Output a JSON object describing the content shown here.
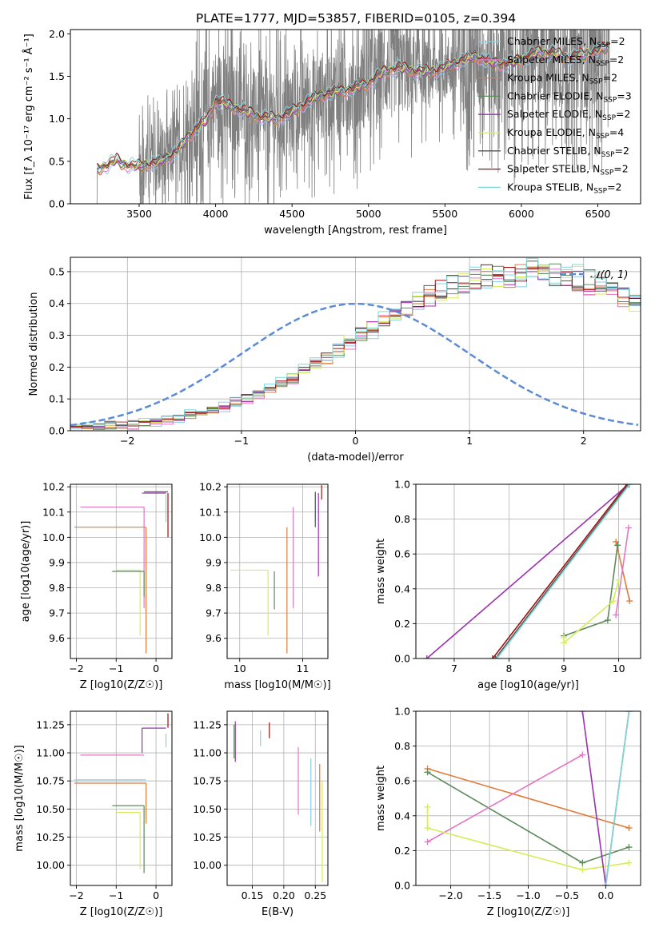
{
  "figure": {
    "title": "PLATE=1777, MJD=53857, FIBERID=0105, z=0.394"
  },
  "colors": {
    "Chabrier MILES": "#87CEEB",
    "Salpeter MILES": "#e377c2",
    "Kroupa MILES": "#e07b39",
    "Chabrier ELODIE": "#5b8a5b",
    "Salpeter ELODIE": "#9b30b0",
    "Kroupa ELODIE": "#d4ee5a",
    "Chabrier STELIB": "#555555",
    "Salpeter STELIB": "#a01010",
    "Kroupa STELIB": "#7fd8d8",
    "spectrum": "#808080",
    "normal": "#5b8bd6",
    "grid": "#b0b0b0"
  },
  "chart_data": [
    {
      "id": "spectrum",
      "type": "line",
      "title": "PLATE=1777, MJD=53857, FIBERID=0105, z=0.394",
      "xlabel": "wavelength [Angstrom, rest frame]",
      "ylabel": "Flux [f_λ 10⁻¹⁷ erg cm⁻² s⁻¹ Å⁻¹]",
      "xlim": [
        3050,
        6780
      ],
      "ylim": [
        0,
        2.05
      ],
      "xticks": [
        3500,
        4000,
        4500,
        5000,
        5500,
        6000,
        6500
      ],
      "yticks": [
        0.0,
        0.5,
        1.0,
        1.5,
        2.0
      ],
      "grid": false,
      "legend_position": "upper-right",
      "legend": [
        {
          "name": "Chabrier MILES",
          "label": "Chabrier MILES, N",
          "sub": "SSP",
          "tail": "=2"
        },
        {
          "name": "Salpeter MILES",
          "label": "Salpeter MILES, N",
          "sub": "SSP",
          "tail": "=2"
        },
        {
          "name": "Kroupa MILES",
          "label": "Kroupa MILES, N",
          "sub": "SSP",
          "tail": "=2"
        },
        {
          "name": "Chabrier ELODIE",
          "label": "Chabrier ELODIE, N",
          "sub": "SSP",
          "tail": "=3"
        },
        {
          "name": "Salpeter ELODIE",
          "label": "Salpeter ELODIE, N",
          "sub": "SSP",
          "tail": "=2"
        },
        {
          "name": "Kroupa ELODIE",
          "label": "Kroupa ELODIE, N",
          "sub": "SSP",
          "tail": "=4"
        },
        {
          "name": "Chabrier STELIB",
          "label": "Chabrier STELIB, N",
          "sub": "SSP",
          "tail": "=2"
        },
        {
          "name": "Salpeter STELIB",
          "label": "Salpeter STELIB, N",
          "sub": "SSP",
          "tail": "=2"
        },
        {
          "name": "Kroupa STELIB",
          "label": "Kroupa STELIB, N",
          "sub": "SSP",
          "tail": "=2"
        }
      ],
      "model_continuum": {
        "x": [
          3220,
          3300,
          3350,
          3400,
          3500,
          3650,
          3750,
          3850,
          3950,
          4000,
          4100,
          4200,
          4300,
          4400,
          4500,
          4600,
          4700,
          4800,
          4900,
          5000,
          5100,
          5200,
          5300,
          5400,
          5500,
          5600,
          5700,
          5800,
          5900,
          6000,
          6100,
          6200,
          6300,
          6400,
          6500,
          6580
        ],
        "y": [
          0.4,
          0.46,
          0.52,
          0.46,
          0.44,
          0.5,
          0.62,
          0.85,
          1.0,
          1.22,
          1.15,
          1.08,
          1.02,
          1.0,
          1.08,
          1.2,
          1.28,
          1.32,
          1.35,
          1.42,
          1.55,
          1.6,
          1.56,
          1.55,
          1.6,
          1.68,
          1.74,
          1.66,
          1.64,
          1.7,
          1.78,
          1.78,
          1.72,
          1.75,
          1.8,
          1.85
        ]
      }
    },
    {
      "id": "residuals",
      "type": "histogram",
      "xlabel": "(data-model)/error",
      "ylabel": "Normed distribution",
      "xlim": [
        -2.5,
        2.5
      ],
      "ylim": [
        0,
        0.545
      ],
      "xticks": [
        -2,
        -1,
        0,
        1,
        2
      ],
      "yticks": [
        0.0,
        0.1,
        0.2,
        0.3,
        0.4,
        0.5
      ],
      "grid": true,
      "legend_position": "upper-right",
      "normal_label": "N(0,1)",
      "normal": {
        "mu": 0,
        "sigma": 1
      },
      "bin_width": 0.1,
      "bin_start": -2.5,
      "envelope": [
        0.01,
        0.01,
        0.015,
        0.015,
        0.02,
        0.02,
        0.025,
        0.03,
        0.035,
        0.04,
        0.05,
        0.055,
        0.065,
        0.075,
        0.09,
        0.1,
        0.115,
        0.13,
        0.15,
        0.165,
        0.19,
        0.21,
        0.23,
        0.255,
        0.28,
        0.3,
        0.32,
        0.345,
        0.365,
        0.385,
        0.4,
        0.42,
        0.44,
        0.45,
        0.46,
        0.47,
        0.48,
        0.485,
        0.49,
        0.495,
        0.5,
        0.495,
        0.49,
        0.485,
        0.48,
        0.47,
        0.46,
        0.44,
        0.42,
        0.4,
        0.39,
        0.37,
        0.355,
        0.34,
        0.32,
        0.3,
        0.28,
        0.26,
        0.245,
        0.225,
        0.21,
        0.19,
        0.175,
        0.155,
        0.14,
        0.125,
        0.11,
        0.1,
        0.09,
        0.08,
        0.07,
        0.065,
        0.055,
        0.05,
        0.045,
        0.04,
        0.035,
        0.03,
        0.03,
        0.025
      ],
      "series_note": "nine model histograms, one per SSP library"
    },
    {
      "id": "age-vs-Z",
      "type": "errorbar",
      "xlabel": "Z [log10(Z/Z☉)]",
      "ylabel": "age [log10(age/yr)]",
      "xlim": [
        -2.15,
        0.4
      ],
      "ylim": [
        9.52,
        10.21
      ],
      "xticks": [
        -2,
        -1,
        0
      ],
      "yticks": [
        9.6,
        9.7,
        9.8,
        9.9,
        10.0,
        10.1,
        10.2
      ],
      "grid": true,
      "points": [
        {
          "model": "Salpeter MILES",
          "x": -0.3,
          "y": 10.12,
          "xerr": [
            1.6,
            0.0
          ],
          "yerr": [
            0.4,
            0.0
          ]
        },
        {
          "model": "Kroupa MILES",
          "x": -0.25,
          "y": 10.04,
          "xerr": [
            1.8,
            0.0
          ],
          "yerr": [
            0.5,
            0.0
          ]
        },
        {
          "model": "Kroupa ELODIE",
          "x": -0.4,
          "y": 9.87,
          "xerr": [
            0.6,
            0.0
          ],
          "yerr": [
            0.26,
            0.0
          ]
        },
        {
          "model": "Chabrier ELODIE",
          "x": -0.3,
          "y": 9.865,
          "xerr": [
            0.8,
            0.0
          ],
          "yerr": [
            0.1,
            0.0
          ]
        },
        {
          "model": "Salpeter ELODIE",
          "x": -0.35,
          "y": 10.175,
          "xerr": [
            0.0,
            0.6
          ],
          "yerr": [
            0.0,
            0.0
          ]
        },
        {
          "model": "Salpeter STELIB",
          "x": 0.3,
          "y": 10.0,
          "xerr": [
            0.0,
            0.0
          ],
          "yerr": [
            0.0,
            0.175
          ]
        },
        {
          "model": "Kroupa STELIB",
          "x": 0.25,
          "y": 10.06,
          "xerr": [
            0.0,
            0.0
          ],
          "yerr": [
            0.0,
            0.11
          ]
        },
        {
          "model": "Chabrier STELIB",
          "x": -0.3,
          "y": 10.18,
          "xerr": [
            0.0,
            0.6
          ],
          "yerr": [
            0.0,
            0.0
          ]
        }
      ]
    },
    {
      "id": "age-vs-mass",
      "type": "errorbar",
      "xlabel": "mass [log10(M/M☉)]",
      "ylabel": "",
      "xlim": [
        9.8,
        11.4
      ],
      "ylim": [
        9.52,
        10.21
      ],
      "xticks": [
        10,
        11
      ],
      "yticks": [
        9.6,
        9.7,
        9.8,
        9.9,
        10.0,
        10.1,
        10.2
      ],
      "grid": true,
      "points": [
        {
          "model": "Salpeter MILES",
          "x": 10.85,
          "y": 10.12,
          "xerr": [
            0.0,
            0.0
          ],
          "yerr": [
            0.4,
            0.0
          ]
        },
        {
          "model": "Kroupa MILES",
          "x": 10.75,
          "y": 10.04,
          "xerr": [
            0.0,
            0.0
          ],
          "yerr": [
            0.5,
            0.0
          ]
        },
        {
          "model": "Kroupa ELODIE",
          "x": 10.45,
          "y": 9.87,
          "xerr": [
            0.6,
            0.0
          ],
          "yerr": [
            0.26,
            0.0
          ]
        },
        {
          "model": "Chabrier ELODIE",
          "x": 10.55,
          "y": 9.865,
          "xerr": [
            0.0,
            0.0
          ],
          "yerr": [
            0.15,
            0.0
          ]
        },
        {
          "model": "Salpeter ELODIE",
          "x": 11.25,
          "y": 10.175,
          "xerr": [
            0.0,
            0.0
          ],
          "yerr": [
            0.33,
            0.0
          ]
        },
        {
          "model": "Salpeter STELIB",
          "x": 11.3,
          "y": 10.175,
          "xerr": [
            0.0,
            0.0
          ],
          "yerr": [
            0.0,
            0.0
          ]
        },
        {
          "model": "Kroupa STELIB",
          "x": 11.2,
          "y": 10.06,
          "xerr": [
            0.0,
            0.0
          ],
          "yerr": [
            0.0,
            0.11
          ]
        },
        {
          "model": "Chabrier STELIB",
          "x": 11.2,
          "y": 10.18,
          "xerr": [
            0.0,
            0.0
          ],
          "yerr": [
            0.14,
            0.0
          ]
        }
      ]
    },
    {
      "id": "weight-vs-age",
      "type": "line",
      "xlabel": "age [log10(age/yr)]",
      "ylabel": "mass weight",
      "xlim": [
        6.3,
        10.4
      ],
      "ylim": [
        0,
        1.0
      ],
      "xticks": [
        7,
        8,
        9,
        10
      ],
      "yticks": [
        0.0,
        0.2,
        0.4,
        0.6,
        0.8,
        1.0
      ],
      "grid": true,
      "series": [
        {
          "name": "Salpeter ELODIE",
          "x": [
            6.5,
            10.18
          ],
          "y": [
            0.0,
            1.0
          ]
        },
        {
          "name": "Salpeter STELIB",
          "x": [
            7.7,
            10.15
          ],
          "y": [
            0.0,
            1.0
          ]
        },
        {
          "name": "Chabrier STELIB",
          "x": [
            7.75,
            10.18
          ],
          "y": [
            0.0,
            1.0
          ]
        },
        {
          "name": "Kroupa STELIB",
          "x": [
            7.78,
            10.2
          ],
          "y": [
            0.0,
            1.0
          ]
        },
        {
          "name": "Kroupa MILES",
          "x": [
            9.95,
            10.2
          ],
          "y": [
            0.67,
            0.33
          ]
        },
        {
          "name": "Salpeter MILES",
          "x": [
            9.95,
            10.18
          ],
          "y": [
            0.25,
            0.75
          ]
        },
        {
          "name": "Chabrier ELODIE",
          "x": [
            9.0,
            9.8,
            9.98
          ],
          "y": [
            0.13,
            0.22,
            0.65
          ]
        },
        {
          "name": "Kroupa ELODIE",
          "x": [
            9.0,
            9.0,
            9.9,
            10.0
          ],
          "y": [
            0.12,
            0.09,
            0.33,
            0.45
          ]
        }
      ]
    },
    {
      "id": "mass-vs-Z",
      "type": "errorbar",
      "xlabel": "Z [log10(Z/Z☉)]",
      "ylabel": "mass [log10(M/M☉)]",
      "xlim": [
        -2.15,
        0.4
      ],
      "ylim": [
        9.82,
        11.37
      ],
      "xticks": [
        -2,
        -1,
        0
      ],
      "yticks": [
        10.0,
        10.25,
        10.5,
        10.75,
        11.0,
        11.25
      ],
      "grid": true,
      "points": [
        {
          "model": "Salpeter MILES",
          "x": -0.3,
          "y": 10.98,
          "xerr": [
            1.6,
            0.0
          ],
          "yerr": [
            0.0,
            0.0
          ]
        },
        {
          "model": "Kroupa MILES",
          "x": -0.25,
          "y": 10.73,
          "xerr": [
            1.8,
            0.0
          ],
          "yerr": [
            0.36,
            0.0
          ]
        },
        {
          "model": "Chabrier MILES",
          "x": -0.25,
          "y": 10.76,
          "xerr": [
            1.8,
            0.0
          ],
          "yerr": [
            0.0,
            0.0
          ]
        },
        {
          "model": "Kroupa ELODIE",
          "x": -0.4,
          "y": 10.47,
          "xerr": [
            0.6,
            0.0
          ],
          "yerr": [
            0.5,
            0.0
          ]
        },
        {
          "model": "Chabrier ELODIE",
          "x": -0.3,
          "y": 10.53,
          "xerr": [
            0.8,
            0.0
          ],
          "yerr": [
            0.6,
            0.0
          ]
        },
        {
          "model": "Salpeter ELODIE",
          "x": -0.35,
          "y": 11.22,
          "xerr": [
            0.0,
            0.6
          ],
          "yerr": [
            0.22,
            0.0
          ]
        },
        {
          "model": "Salpeter STELIB",
          "x": 0.3,
          "y": 11.28,
          "xerr": [
            0.0,
            0.0
          ],
          "yerr": [
            0.0,
            0.0
          ]
        },
        {
          "model": "Kroupa STELIB",
          "x": 0.25,
          "y": 11.05,
          "xerr": [
            0.0,
            0.0
          ],
          "yerr": [
            0.0,
            0.12
          ]
        }
      ]
    },
    {
      "id": "mass-vs-EBV",
      "type": "errorbar",
      "xlabel": "E(B-V)",
      "ylabel": "",
      "xlim": [
        0.11,
        0.27
      ],
      "ylim": [
        9.82,
        11.37
      ],
      "xticks": [
        0.15,
        0.2,
        0.25
      ],
      "yticks": [
        10.0,
        10.25,
        10.5,
        10.75,
        11.0,
        11.25
      ],
      "grid": true,
      "points": [
        {
          "model": "Salpeter ELODIE",
          "x": 0.123,
          "y": 11.1,
          "yerr": [
            0.18,
            0.18
          ]
        },
        {
          "model": "Chabrier ELODIE",
          "x": 0.121,
          "y": 11.1,
          "yerr": [
            0.15,
            0.15
          ]
        },
        {
          "model": "Kroupa STELIB",
          "x": 0.163,
          "y": 11.13,
          "yerr": [
            0.07,
            0.07
          ]
        },
        {
          "model": "Salpeter STELIB",
          "x": 0.177,
          "y": 11.2,
          "yerr": [
            0.07,
            0.07
          ]
        },
        {
          "model": "Salpeter MILES",
          "x": 0.223,
          "y": 10.75,
          "yerr": [
            0.3,
            0.3
          ]
        },
        {
          "model": "Chabrier MILES",
          "x": 0.243,
          "y": 10.65,
          "yerr": [
            0.3,
            0.3
          ]
        },
        {
          "model": "Kroupa MILES",
          "x": 0.257,
          "y": 10.6,
          "yerr": [
            0.3,
            0.3
          ]
        },
        {
          "model": "Kroupa ELODIE",
          "x": 0.261,
          "y": 10.3,
          "yerr": [
            0.45,
            0.45
          ]
        }
      ]
    },
    {
      "id": "weight-vs-Z",
      "type": "line",
      "xlabel": "Z [log10(Z/Z☉)]",
      "ylabel": "mass weight",
      "xlim": [
        -2.45,
        0.45
      ],
      "ylim": [
        0,
        1.0
      ],
      "xticks": [
        -2.0,
        -1.5,
        -1.0,
        -0.5,
        0.0
      ],
      "yticks": [
        0.0,
        0.2,
        0.4,
        0.6,
        0.8,
        1.0
      ],
      "grid": true,
      "series": [
        {
          "name": "Kroupa MILES",
          "x": [
            -2.3,
            0.3
          ],
          "y": [
            0.67,
            0.33
          ]
        },
        {
          "name": "Chabrier ELODIE",
          "x": [
            -2.3,
            -0.3,
            0.3
          ],
          "y": [
            0.65,
            0.13,
            0.22
          ]
        },
        {
          "name": "Salpeter MILES",
          "x": [
            -2.3,
            -0.3
          ],
          "y": [
            0.25,
            0.75
          ]
        },
        {
          "name": "Kroupa ELODIE",
          "x": [
            -2.3,
            -2.3,
            -0.3,
            0.3
          ],
          "y": [
            0.45,
            0.33,
            0.09,
            0.13
          ]
        },
        {
          "name": "Salpeter ELODIE",
          "x": [
            -0.3,
            0.0
          ],
          "y": [
            1.0,
            0.0
          ]
        },
        {
          "name": "Chabrier STELIB",
          "x": [
            0.0,
            0.3
          ],
          "y": [
            0.0,
            1.0
          ]
        },
        {
          "name": "Kroupa STELIB",
          "x": [
            0.0,
            0.3
          ],
          "y": [
            0.0,
            1.0
          ]
        }
      ]
    }
  ]
}
